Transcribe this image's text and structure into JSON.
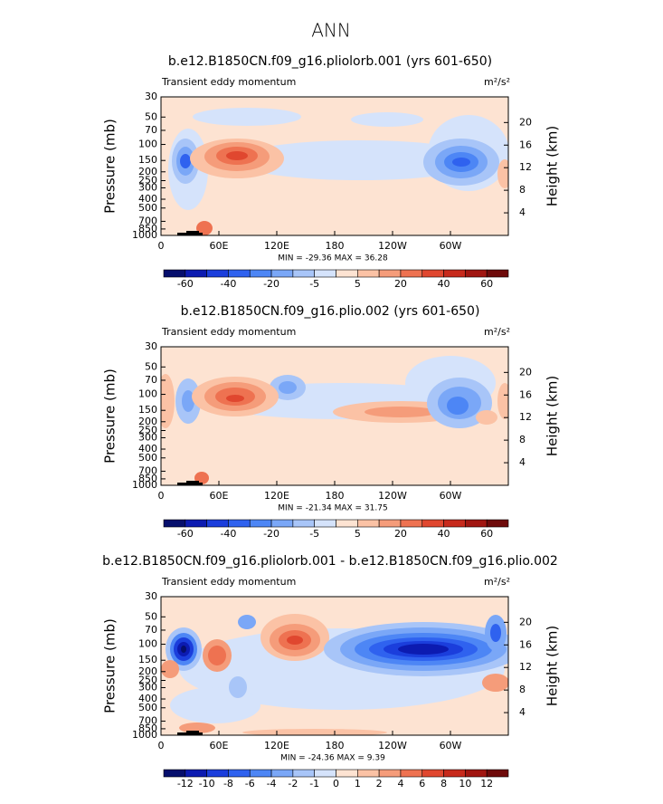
{
  "title": "ANN",
  "chart_data": [
    {
      "type": "contour",
      "title": "b.e12.B1850CN.f09_g16.pliolorb.001 (yrs 601-650)",
      "subtitle": "Transient eddy momentum",
      "units": "m²/s²",
      "ylabel": "Pressure (mb)",
      "y2label": "Height (km)",
      "ylog": true,
      "ylim": [
        1000,
        30
      ],
      "yticks": [
        30,
        50,
        70,
        100,
        150,
        200,
        250,
        300,
        400,
        500,
        700,
        850,
        1000
      ],
      "y2ticks": [
        4,
        8,
        12,
        16,
        20
      ],
      "xlim": [
        0,
        360
      ],
      "xticks": [
        0,
        {
          "value": 60,
          "label": "60E"
        },
        {
          "value": 120,
          "label": "120E"
        },
        180,
        {
          "value": 240,
          "label": "120W"
        },
        {
          "value": 300,
          "label": "60W"
        }
      ],
      "min_max": "MIN = -29.36   MAX =  36.28",
      "colorbar": {
        "labels": [
          -60,
          -40,
          -20,
          -5,
          5,
          20,
          40,
          60
        ],
        "colors": [
          "#060f6d",
          "#0c1bb1",
          "#1b3edc",
          "#2f62ef",
          "#4d86f5",
          "#7aa7f7",
          "#a8c5f8",
          "#d5e3fb",
          "#fde3d2",
          "#fbc2a5",
          "#f59c7a",
          "#ee7251",
          "#e0472f",
          "#c72a1c",
          "#a11611",
          "#6e0a0a"
        ]
      }
    },
    {
      "type": "contour",
      "title": "b.e12.B1850CN.f09_g16.plio.002 (yrs 601-650)",
      "subtitle": "Transient eddy momentum",
      "units": "m²/s²",
      "ylabel": "Pressure (mb)",
      "y2label": "Height (km)",
      "ylog": true,
      "ylim": [
        1000,
        30
      ],
      "yticks": [
        30,
        50,
        70,
        100,
        150,
        200,
        250,
        300,
        400,
        500,
        700,
        850,
        1000
      ],
      "y2ticks": [
        4,
        8,
        12,
        16,
        20
      ],
      "xlim": [
        0,
        360
      ],
      "xticks": [
        0,
        {
          "value": 60,
          "label": "60E"
        },
        {
          "value": 120,
          "label": "120E"
        },
        180,
        {
          "value": 240,
          "label": "120W"
        },
        {
          "value": 300,
          "label": "60W"
        }
      ],
      "min_max": "MIN = -21.34   MAX =  31.75",
      "colorbar": {
        "labels": [
          -60,
          -40,
          -20,
          -5,
          5,
          20,
          40,
          60
        ],
        "colors": [
          "#060f6d",
          "#0c1bb1",
          "#1b3edc",
          "#2f62ef",
          "#4d86f5",
          "#7aa7f7",
          "#a8c5f8",
          "#d5e3fb",
          "#fde3d2",
          "#fbc2a5",
          "#f59c7a",
          "#ee7251",
          "#e0472f",
          "#c72a1c",
          "#a11611",
          "#6e0a0a"
        ]
      }
    },
    {
      "type": "contour",
      "title": "b.e12.B1850CN.f09_g16.pliolorb.001 - b.e12.B1850CN.f09_g16.plio.002",
      "subtitle": "Transient eddy momentum",
      "units": "m²/s²",
      "ylabel": "Pressure (mb)",
      "y2label": "Height (km)",
      "ylog": true,
      "ylim": [
        1000,
        30
      ],
      "yticks": [
        30,
        50,
        70,
        100,
        150,
        200,
        250,
        300,
        400,
        500,
        700,
        850,
        1000
      ],
      "y2ticks": [
        4,
        8,
        12,
        16,
        20
      ],
      "xlim": [
        0,
        360
      ],
      "xticks": [
        0,
        {
          "value": 60,
          "label": "60E"
        },
        {
          "value": 120,
          "label": "120E"
        },
        180,
        {
          "value": 240,
          "label": "120W"
        },
        {
          "value": 300,
          "label": "60W"
        }
      ],
      "min_max": "MIN = -24.36   MAX =   9.39",
      "colorbar": {
        "labels": [
          -12,
          -10,
          -8,
          -6,
          -4,
          -2,
          -1,
          0,
          1,
          2,
          4,
          6,
          8,
          10,
          12
        ],
        "colors": [
          "#060f6d",
          "#0c1bb1",
          "#1b3edc",
          "#2f62ef",
          "#4d86f5",
          "#7aa7f7",
          "#a8c5f8",
          "#d5e3fb",
          "#fde3d2",
          "#fbc2a5",
          "#f59c7a",
          "#ee7251",
          "#e0472f",
          "#c72a1c",
          "#a11611",
          "#6e0a0a"
        ]
      }
    }
  ]
}
